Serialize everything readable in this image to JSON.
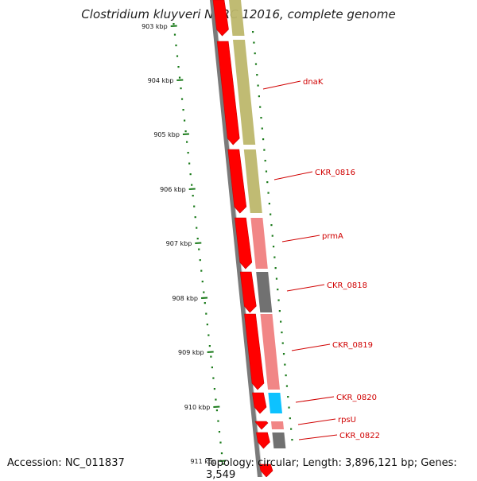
{
  "title": "Clostridium kluyveri NBRC 12016, complete genome",
  "footer": {
    "accession": "Accession: NC_011837",
    "stats": "Topology: circular; Length: 3,896,121 bp; Genes: 3,549"
  },
  "colors": {
    "cds": "#ff0000",
    "backbone": "#888888",
    "tick": "#1a7a1a",
    "label": "#d00000"
  },
  "ticks": [
    "903 kbp",
    "904 kbp",
    "905 kbp",
    "906 kbp",
    "907 kbp",
    "908 kbp",
    "909 kbp",
    "910 kbp",
    "911 kbp"
  ],
  "genes": [
    {
      "name": "dnaK",
      "color": "#bdb76b"
    },
    {
      "name": "CKR_0816",
      "color": "#bdb76b"
    },
    {
      "name": "prmA",
      "color": "#f08080"
    },
    {
      "name": "CKR_0818",
      "color": "#696969"
    },
    {
      "name": "CKR_0819",
      "color": "#f08080"
    },
    {
      "name": "CKR_0820",
      "color": "#00bfff"
    },
    {
      "name": "rpsU",
      "color": "#f08080"
    },
    {
      "name": "CKR_0822",
      "color": "#696969"
    }
  ]
}
